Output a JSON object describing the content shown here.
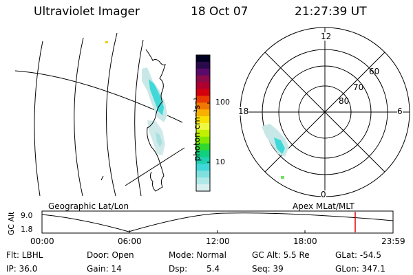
{
  "header": {
    "title": "Ultraviolet Imager",
    "date": "18 Oct 07",
    "time": "21:27:39 UT"
  },
  "colorbar": {
    "unit_label": "photon cm⁻²s⁻¹",
    "tick_labels": [
      "100",
      "10"
    ],
    "colors": [
      "#000022",
      "#2a0a4a",
      "#5a0a6a",
      "#8a0a4a",
      "#b00030",
      "#d40010",
      "#e83a00",
      "#f07800",
      "#f8b000",
      "#f8e000",
      "#f0f840",
      "#c0f000",
      "#80e800",
      "#30d830",
      "#10d080",
      "#20d0b0",
      "#40d8d8",
      "#80e0e0",
      "#b0e8e8",
      "#d8f0f0"
    ]
  },
  "labels": {
    "geo": "Geographic Lat/Lon",
    "apex": "Apex MLat/MLT"
  },
  "polar": {
    "mlt_labels": [
      "12",
      "18",
      "6",
      "0"
    ],
    "mlat_labels": [
      "60",
      "70",
      "80"
    ]
  },
  "alt_plot": {
    "ylabel": "GC Alt",
    "yticks": [
      "9.0",
      "1.8"
    ],
    "xticks": [
      "00:00",
      "06:00",
      "12:00",
      "18:00",
      "23:59"
    ],
    "marker_color": "#e00000"
  },
  "info": {
    "flt": "Flt: LBHL",
    "ip": "IP: 36.0",
    "door": "Door: Open",
    "gain": "Gain: 14",
    "mode": "Mode: Normal",
    "dsp_label": "Dsp:",
    "dsp_value": "5.4",
    "gc_alt": "GC Alt: 5.5 Re",
    "seq": "Seq: 39",
    "glat": "GLat: -54.5",
    "glon": "GLon: 347.1"
  }
}
